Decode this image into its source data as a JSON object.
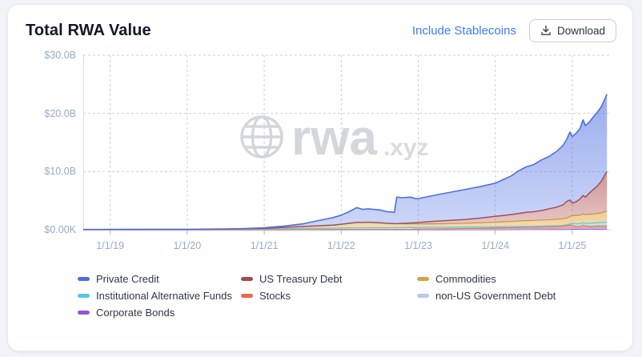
{
  "card": {
    "title": "Total RWA Value",
    "actions": {
      "include_stablecoins": "Include Stablecoins",
      "download": "Download"
    }
  },
  "watermark": {
    "brand": "rwa",
    "suffix": ".xyz"
  },
  "chart_data": {
    "type": "area",
    "stacked": true,
    "title": "Total RWA Value",
    "unit": "USD billions",
    "grid": "dashed horizontal and vertical",
    "legend_position": "bottom",
    "x_domain": [
      2018.65,
      2025.51
    ],
    "y_domain": [
      0,
      30
    ],
    "y_ticks": [
      {
        "v": 0,
        "label": "$0.00K"
      },
      {
        "v": 10,
        "label": "$10.0B"
      },
      {
        "v": 20,
        "label": "$20.0B"
      },
      {
        "v": 30,
        "label": "$30.0B"
      }
    ],
    "x_ticks": [
      {
        "t": 2019,
        "label": "1/1/19"
      },
      {
        "t": 2020,
        "label": "1/1/20"
      },
      {
        "t": 2021,
        "label": "1/1/21"
      },
      {
        "t": 2022,
        "label": "1/1/22"
      },
      {
        "t": 2023,
        "label": "1/1/23"
      },
      {
        "t": 2024,
        "label": "1/1/24"
      },
      {
        "t": 2025,
        "label": "1/1/25"
      }
    ],
    "x": [
      2018.65,
      2019.0,
      2019.5,
      2020.0,
      2020.5,
      2020.75,
      2021.0,
      2021.25,
      2021.5,
      2021.75,
      2021.9,
      2022.0,
      2022.1,
      2022.2,
      2022.28,
      2022.35,
      2022.5,
      2022.6,
      2022.69,
      2022.72,
      2022.8,
      2022.9,
      2022.96,
      2023.0,
      2023.2,
      2023.4,
      2023.6,
      2023.8,
      2024.0,
      2024.1,
      2024.2,
      2024.3,
      2024.4,
      2024.5,
      2024.6,
      2024.7,
      2024.8,
      2024.88,
      2024.93,
      2024.97,
      2025.0,
      2025.05,
      2025.1,
      2025.14,
      2025.17,
      2025.22,
      2025.28,
      2025.33,
      2025.38,
      2025.42,
      2025.45
    ],
    "series": [
      {
        "id": "corporate-bonds",
        "name": "Corporate Bonds",
        "line": "#9656d2",
        "fill_top": "rgba(154,95,216,0.60)",
        "fill_bottom": "rgba(154,95,216,0.45)",
        "stroke_width": 1.3,
        "values": [
          0,
          0,
          0,
          0,
          0,
          0,
          0,
          0,
          0,
          0,
          0,
          0,
          0,
          0,
          0,
          0,
          0,
          0,
          0,
          0,
          0,
          0,
          0,
          0,
          0,
          0,
          0.01,
          0.02,
          0.03,
          0.03,
          0.04,
          0.04,
          0.05,
          0.05,
          0.05,
          0.06,
          0.06,
          0.06,
          0.07,
          0.08,
          0.1,
          0.1,
          0.1,
          0.1,
          0.1,
          0.11,
          0.11,
          0.11,
          0.12,
          0.12,
          0.12
        ]
      },
      {
        "id": "non-us-government-debt",
        "name": "non-US Government Debt",
        "line": "#b7c8e3",
        "fill_top": "rgba(188,203,226,0.85)",
        "fill_bottom": "rgba(188,203,226,0.60)",
        "stroke_width": 1.3,
        "values": [
          0,
          0,
          0,
          0,
          0,
          0,
          0,
          0,
          0.02,
          0.03,
          0.03,
          0.04,
          0.04,
          0.04,
          0.04,
          0.04,
          0.05,
          0.05,
          0.05,
          0.05,
          0.06,
          0.06,
          0.06,
          0.07,
          0.07,
          0.08,
          0.08,
          0.09,
          0.1,
          0.11,
          0.11,
          0.12,
          0.12,
          0.13,
          0.13,
          0.14,
          0.14,
          0.15,
          0.16,
          0.2,
          0.15,
          0.15,
          0.16,
          0.17,
          0.17,
          0.17,
          0.18,
          0.18,
          0.19,
          0.2,
          0.2
        ]
      },
      {
        "id": "stocks",
        "name": "Stocks",
        "line": "#ed6843",
        "fill_top": "rgba(240,112,80,0.65)",
        "fill_bottom": "rgba(240,112,80,0.50)",
        "stroke_width": 1.3,
        "values": [
          0,
          0,
          0,
          0,
          0,
          0,
          0,
          0,
          0,
          0,
          0,
          0,
          0,
          0,
          0,
          0,
          0,
          0,
          0,
          0,
          0,
          0,
          0.06,
          0.07,
          0.08,
          0.1,
          0.12,
          0.15,
          0.18,
          0.2,
          0.22,
          0.24,
          0.26,
          0.28,
          0.3,
          0.33,
          0.36,
          0.4,
          0.5,
          0.55,
          0.5,
          0.3,
          0.34,
          0.53,
          0.38,
          0.32,
          0.33,
          0.36,
          0.34,
          0.38,
          0.38
        ]
      },
      {
        "id": "institutional-alternative-funds",
        "name": "Institutional Alternative Funds",
        "line": "#53c7e8",
        "fill_top": "rgba(129,214,238,0.60)",
        "fill_bottom": "rgba(129,214,238,0.45)",
        "stroke_width": 1.3,
        "values": [
          0.02,
          0.03,
          0.04,
          0.05,
          0.08,
          0.1,
          0.13,
          0.17,
          0.18,
          0.22,
          0.25,
          0.26,
          0.28,
          0.29,
          0.29,
          0.3,
          0.3,
          0.3,
          0.3,
          0.3,
          0.3,
          0.32,
          0.27,
          0.26,
          0.27,
          0.26,
          0.25,
          0.22,
          0.19,
          0.18,
          0.17,
          0.16,
          0.15,
          0.14,
          0.15,
          0.13,
          0.14,
          0.14,
          0.12,
          0.17,
          0.35,
          0.45,
          0.45,
          0.4,
          0.45,
          0.5,
          0.53,
          0.55,
          0.6,
          0.6,
          0.6
        ]
      },
      {
        "id": "commodities",
        "name": "Commodities",
        "line": "#d8a33f",
        "fill_top": "rgba(226,181,94,0.66)",
        "fill_bottom": "rgba(226,181,94,0.45)",
        "stroke_width": 1.3,
        "values": [
          0.01,
          0.01,
          0.01,
          0.01,
          0.02,
          0.06,
          0.12,
          0.23,
          0.35,
          0.45,
          0.52,
          0.65,
          0.78,
          0.92,
          0.92,
          0.95,
          0.85,
          0.75,
          0.7,
          0.7,
          0.64,
          0.62,
          0.61,
          0.6,
          0.58,
          0.61,
          0.64,
          0.72,
          0.8,
          0.83,
          0.86,
          0.94,
          0.97,
          1.0,
          1.02,
          1.04,
          1.1,
          1.15,
          1.15,
          1.3,
          1.3,
          1.45,
          1.45,
          1.5,
          1.5,
          1.55,
          1.55,
          1.6,
          1.65,
          1.8,
          1.9
        ]
      },
      {
        "id": "us-treasury-debt",
        "name": "US Treasury Debt",
        "line": "#a8494b",
        "fill_top": "rgba(178,84,82,0.62)",
        "fill_bottom": "rgba(178,84,82,0.30)",
        "stroke_width": 1.5,
        "values": [
          0,
          0,
          0,
          0,
          0,
          0,
          0,
          0,
          0,
          0,
          0,
          0,
          0,
          0,
          0,
          0,
          0,
          0,
          0,
          0,
          0.1,
          0.15,
          0.2,
          0.25,
          0.45,
          0.55,
          0.65,
          0.8,
          1.0,
          1.1,
          1.2,
          1.3,
          1.45,
          1.5,
          1.65,
          1.9,
          2.1,
          2.4,
          2.9,
          2.8,
          2.2,
          2.35,
          2.8,
          3.2,
          3.0,
          3.65,
          4.3,
          4.8,
          5.5,
          6.3,
          6.8
        ]
      },
      {
        "id": "private-credit",
        "name": "Private Credit",
        "line": "#4a6fe3",
        "fill_top": "rgba(92,122,229,0.62)",
        "fill_bottom": "rgba(92,122,229,0.30)",
        "stroke_width": 1.6,
        "values": [
          0.01,
          0.01,
          0.01,
          0.01,
          0.02,
          0.04,
          0.1,
          0.2,
          0.45,
          1.0,
          1.3,
          1.55,
          2.0,
          2.55,
          2.25,
          2.3,
          2.2,
          2.0,
          1.95,
          4.55,
          4.4,
          4.45,
          4.15,
          4.1,
          4.45,
          4.8,
          5.15,
          5.4,
          5.7,
          6.15,
          6.6,
          7.3,
          7.8,
          8.1,
          8.7,
          9.0,
          9.6,
          10.2,
          10.7,
          11.7,
          11.4,
          11.8,
          12.1,
          13.0,
          12.3,
          12.2,
          12.5,
          12.7,
          12.8,
          13.0,
          13.3
        ]
      }
    ],
    "legend_order": [
      "Private Credit",
      "US Treasury Debt",
      "Commodities",
      "Institutional Alternative Funds",
      "Stocks",
      "non-US Government Debt",
      "Corporate Bonds"
    ]
  }
}
